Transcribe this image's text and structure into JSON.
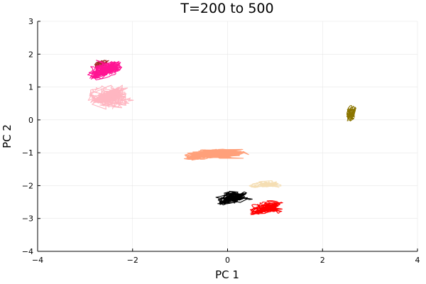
{
  "chart_data": {
    "type": "line",
    "title": "T=200 to 500",
    "xlabel": "PC 1",
    "ylabel": "PC 2",
    "xlim": [
      -4,
      4
    ],
    "ylim": [
      -4,
      3
    ],
    "xticks": [
      -4,
      -2,
      0,
      2,
      4
    ],
    "yticks": [
      -4,
      -3,
      -2,
      -1,
      0,
      1,
      2,
      3
    ],
    "xtick_labels": [
      "−4",
      "−2",
      "0",
      "2",
      "4"
    ],
    "ytick_labels": [
      "−4",
      "−3",
      "−2",
      "−1",
      "0",
      "1",
      "2",
      "3"
    ],
    "grid": true,
    "legend": "none",
    "series": [
      {
        "color": "#a52a2a",
        "center": [
          -2.65,
          1.7
        ],
        "spread": [
          0.2,
          0.16
        ],
        "tail": [
          0.0,
          0.0
        ],
        "loops": 3,
        "points": 70
      },
      {
        "color": "#ff1493",
        "center": [
          -2.65,
          1.45
        ],
        "spread": [
          0.45,
          0.35
        ],
        "tail": [
          0.3,
          0.25
        ],
        "loops": 5,
        "points": 70
      },
      {
        "color": "#ffb6c1",
        "center": [
          -2.65,
          0.85
        ],
        "spread": [
          0.45,
          0.3
        ],
        "tail": [
          0.6,
          -0.5
        ],
        "loops": 5,
        "points": 70
      },
      {
        "color": "#8b7500",
        "center": [
          2.6,
          0.25
        ],
        "spread": [
          0.14,
          0.26
        ],
        "tail": [
          0.05,
          -0.2
        ],
        "loops": 3,
        "points": 70
      },
      {
        "color": "#ffa07a",
        "center": [
          -0.55,
          -1.05
        ],
        "spread": [
          0.55,
          0.22
        ],
        "tail": [
          0.9,
          0.05
        ],
        "loops": 6,
        "points": 80
      },
      {
        "color": "#f5deb3",
        "center": [
          0.75,
          -1.95
        ],
        "spread": [
          0.4,
          0.15
        ],
        "tail": [
          0.3,
          -0.05
        ],
        "loops": 3,
        "points": 70
      },
      {
        "color": "#000000",
        "center": [
          0.05,
          -2.4
        ],
        "spread": [
          0.38,
          0.25
        ],
        "tail": [
          0.3,
          0.1
        ],
        "loops": 4,
        "points": 80
      },
      {
        "color": "#ff0000",
        "center": [
          0.75,
          -2.7
        ],
        "spread": [
          0.42,
          0.28
        ],
        "tail": [
          0.3,
          0.05
        ],
        "loops": 4,
        "points": 80
      }
    ]
  }
}
